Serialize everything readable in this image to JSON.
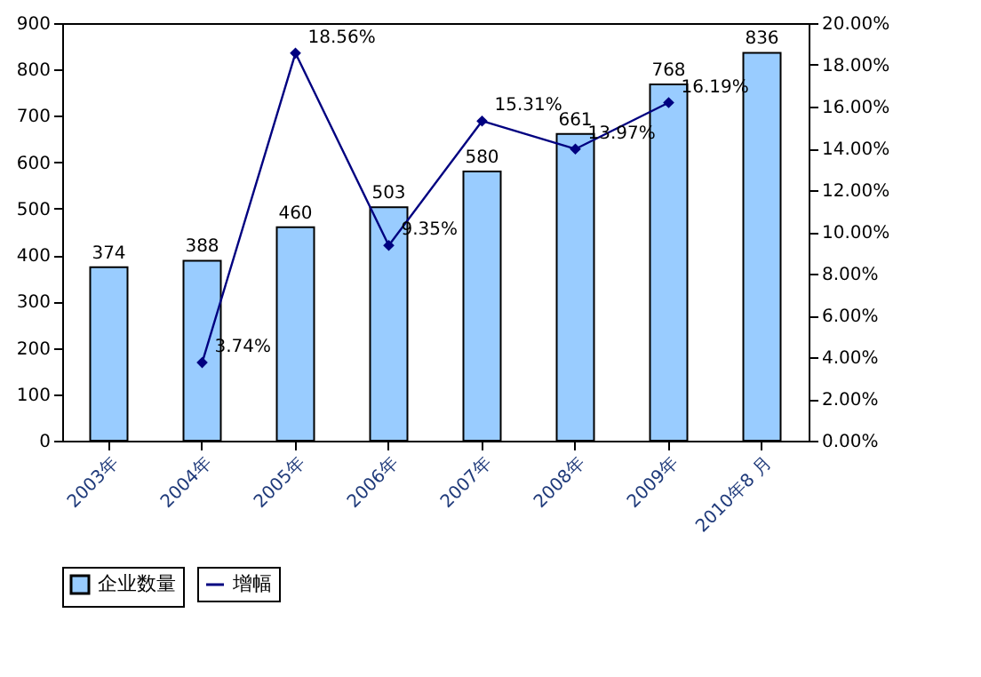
{
  "chart_data": {
    "type": "bar",
    "categories": [
      "2003年",
      "2004年",
      "2005年",
      "2006年",
      "2007年",
      "2008年",
      "2009年",
      "2010年8 月"
    ],
    "series": [
      {
        "name": "企业数量",
        "color": "#99ccff",
        "values": [
          374,
          388,
          460,
          503,
          580,
          661,
          768,
          836
        ],
        "value_labels": [
          "374",
          "388",
          "460",
          "503",
          "580",
          "661",
          "768",
          "836"
        ]
      },
      {
        "name": "增幅",
        "type": "line",
        "axis": "y2",
        "color": "#000080",
        "marker": "diamond",
        "values": [
          null,
          3.74,
          18.56,
          9.35,
          15.31,
          13.97,
          16.19,
          null
        ],
        "value_labels": [
          null,
          "3.74%",
          "18.56%",
          "9.35%",
          "15.31%",
          "13.97%",
          "16.19%",
          null
        ]
      }
    ],
    "ylim": [
      0,
      900
    ],
    "yticks": [
      0,
      100,
      200,
      300,
      400,
      500,
      600,
      700,
      800,
      900
    ],
    "y2lim": [
      0,
      20
    ],
    "y2ticks": [
      {
        "value": 0,
        "label": "0.00%"
      },
      {
        "value": 2,
        "label": "2.00%"
      },
      {
        "value": 4,
        "label": "4.00%"
      },
      {
        "value": 6,
        "label": "6.00%"
      },
      {
        "value": 8,
        "label": "8.00%"
      },
      {
        "value": 10,
        "label": "10.00%"
      },
      {
        "value": 12,
        "label": "12.00%"
      },
      {
        "value": 14,
        "label": "14.00%"
      },
      {
        "value": 16,
        "label": "16.00%"
      },
      {
        "value": 18,
        "label": "18.00%"
      },
      {
        "value": 20,
        "label": "20.00%"
      }
    ],
    "grid": false,
    "legend": "bottom"
  }
}
